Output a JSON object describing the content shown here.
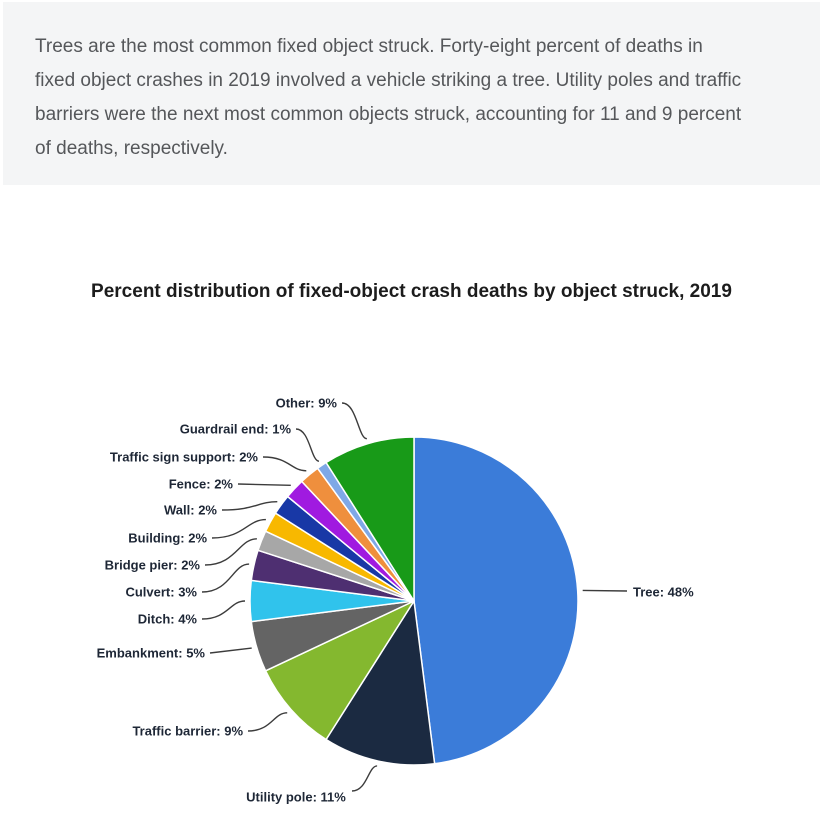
{
  "intro": {
    "text": "Trees are the most common fixed object struck. Forty-eight percent of deaths in fixed object crashes in 2019 involved a vehicle striking a tree. Utility poles and traffic barriers were the next most common objects struck, accounting for 11 and 9 percent of deaths, respectively.",
    "background_color": "#f4f5f6",
    "text_color": "#55575a"
  },
  "chart": {
    "title": "Percent distribution of fixed-object crash deaths by object struck, 2019"
  },
  "chart_data": {
    "type": "pie",
    "title": "Percent distribution of fixed-object crash deaths by object struck, 2019",
    "unit": "percent",
    "start_angle_deg": 0,
    "direction": "clockwise",
    "legend_position": "outside-labels-with-leader-lines",
    "slices": [
      {
        "label": "Tree",
        "value": 48,
        "display": "Tree: 48%",
        "color": "#3b7cd9"
      },
      {
        "label": "Utility pole",
        "value": 11,
        "display": "Utility pole: 11%",
        "color": "#1b2a41"
      },
      {
        "label": "Traffic barrier",
        "value": 9,
        "display": "Traffic barrier: 9%",
        "color": "#84b82f"
      },
      {
        "label": "Embankment",
        "value": 5,
        "display": "Embankment: 5%",
        "color": "#646464"
      },
      {
        "label": "Ditch",
        "value": 4,
        "display": "Ditch: 4%",
        "color": "#30c3ec"
      },
      {
        "label": "Culvert",
        "value": 3,
        "display": "Culvert: 3%",
        "color": "#4e2f71"
      },
      {
        "label": "Bridge pier",
        "value": 2,
        "display": "Bridge pier: 2%",
        "color": "#a7a7a7"
      },
      {
        "label": "Building",
        "value": 2,
        "display": "Building: 2%",
        "color": "#f8b800"
      },
      {
        "label": "Wall",
        "value": 2,
        "display": "Wall: 2%",
        "color": "#1838a6"
      },
      {
        "label": "Fence",
        "value": 2,
        "display": "Fence: 2%",
        "color": "#a01ae0"
      },
      {
        "label": "Traffic sign support",
        "value": 2,
        "display": "Traffic sign support: 2%",
        "color": "#ef8f3d"
      },
      {
        "label": "Guardrail end",
        "value": 1,
        "display": "Guardrail end: 1%",
        "color": "#7fa8e6"
      },
      {
        "label": "Other",
        "value": 9,
        "display": "Other: 9%",
        "color": "#189a18"
      }
    ],
    "leader_line_color": "#3c3c3c",
    "slice_border_color": "#ffffff",
    "label_text_color": "#1e2736"
  }
}
